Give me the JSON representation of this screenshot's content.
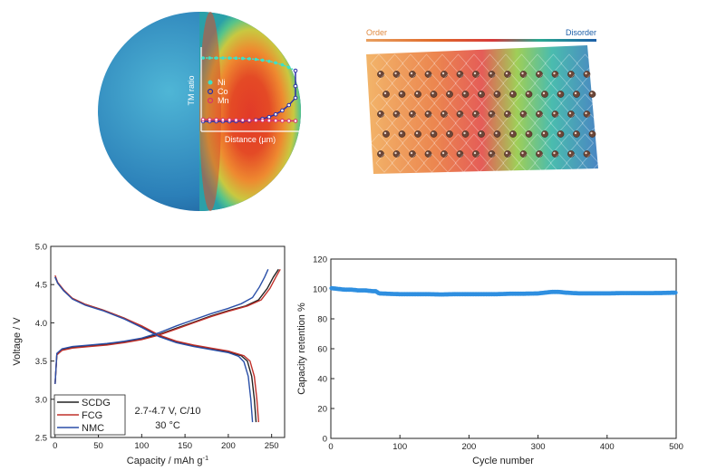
{
  "sphere_inset": {
    "legend": [
      "Ni",
      "Co",
      "Mn"
    ],
    "ylabel": "TM ratio",
    "xlabel": "Distance (µm)",
    "colors": {
      "Ni": "#3de0c8",
      "Co": "#2a2fa8",
      "Mn": "#d6336c"
    }
  },
  "lattice": {
    "left_label": "Order",
    "right_label": "Disorder",
    "gradient": [
      "#e8a060",
      "#e06a2a",
      "#d63a3a",
      "#2aa890",
      "#1d5fa8"
    ]
  },
  "chart_data": [
    {
      "type": "line",
      "id": "voltage-profile",
      "title": "",
      "xlabel": "Capacity / mAh g",
      "xlabel_sup": "-1",
      "ylabel": "Voltage / V",
      "xlim": [
        -5,
        265
      ],
      "ylim": [
        2.5,
        5.0
      ],
      "xticks": [
        0,
        50,
        100,
        150,
        200,
        250
      ],
      "yticks": [
        2.5,
        3.0,
        3.5,
        4.0,
        4.5,
        5.0
      ],
      "annotation": [
        "2.7-4.7 V, C/10",
        "30 °C"
      ],
      "legend_position": "bottom-left",
      "series": [
        {
          "name": "SCDG",
          "color": "#222222",
          "charge": {
            "x": [
              0,
              2,
              8,
              20,
              40,
              60,
              80,
              100,
              120,
              140,
              160,
              180,
              200,
              220,
              235,
              245,
              252,
              258
            ],
            "y": [
              3.2,
              3.58,
              3.65,
              3.68,
              3.7,
              3.72,
              3.75,
              3.79,
              3.85,
              3.93,
              4.01,
              4.09,
              4.16,
              4.22,
              4.3,
              4.45,
              4.6,
              4.7
            ]
          },
          "discharge": {
            "x": [
              0,
              3,
              10,
              20,
              35,
              55,
              80,
              100,
              120,
              140,
              160,
              180,
              200,
              215,
              222,
              227,
              230,
              232
            ],
            "y": [
              4.6,
              4.52,
              4.42,
              4.32,
              4.24,
              4.17,
              4.06,
              3.95,
              3.83,
              3.75,
              3.7,
              3.66,
              3.62,
              3.57,
              3.5,
              3.3,
              3.0,
              2.7
            ]
          }
        },
        {
          "name": "FCG",
          "color": "#c0302a",
          "charge": {
            "x": [
              0,
              2,
              8,
              20,
              40,
              60,
              80,
              100,
              120,
              140,
              160,
              180,
              200,
              222,
              238,
              248,
              255,
              260
            ],
            "y": [
              3.2,
              3.58,
              3.64,
              3.67,
              3.69,
              3.71,
              3.74,
              3.78,
              3.84,
              3.92,
              4.0,
              4.08,
              4.15,
              4.22,
              4.3,
              4.45,
              4.6,
              4.7
            ]
          },
          "discharge": {
            "x": [
              0,
              3,
              10,
              20,
              35,
              55,
              80,
              100,
              120,
              140,
              160,
              180,
              200,
              218,
              225,
              230,
              233,
              235
            ],
            "y": [
              4.62,
              4.53,
              4.43,
              4.32,
              4.24,
              4.17,
              4.06,
              3.96,
              3.84,
              3.76,
              3.71,
              3.67,
              3.63,
              3.57,
              3.5,
              3.3,
              3.0,
              2.7
            ]
          }
        },
        {
          "name": "NMC",
          "color": "#2a4fa8",
          "charge": {
            "x": [
              0,
              2,
              8,
              20,
              40,
              60,
              80,
              100,
              120,
              140,
              160,
              180,
              200,
              215,
              228,
              236,
              242,
              246
            ],
            "y": [
              3.2,
              3.6,
              3.66,
              3.69,
              3.71,
              3.73,
              3.76,
              3.8,
              3.87,
              3.96,
              4.04,
              4.12,
              4.19,
              4.25,
              4.33,
              4.47,
              4.6,
              4.7
            ]
          },
          "discharge": {
            "x": [
              0,
              3,
              10,
              20,
              35,
              55,
              80,
              100,
              120,
              140,
              160,
              180,
              200,
              212,
              218,
              223,
              226,
              228
            ],
            "y": [
              4.6,
              4.52,
              4.42,
              4.31,
              4.23,
              4.16,
              4.05,
              3.94,
              3.82,
              3.74,
              3.69,
              3.65,
              3.61,
              3.56,
              3.49,
              3.3,
              3.0,
              2.7
            ]
          }
        }
      ]
    },
    {
      "type": "scatter",
      "id": "cycle-retention",
      "title": "",
      "xlabel": "Cycle number",
      "ylabel": "Capacity retention %",
      "xlim": [
        0,
        500
      ],
      "ylim": [
        0,
        120
      ],
      "xticks": [
        0,
        100,
        200,
        300,
        400,
        500
      ],
      "yticks": [
        0,
        20,
        40,
        60,
        80,
        100,
        120
      ],
      "color": "#2f8fe0",
      "series": [
        {
          "name": "",
          "x": [
            1,
            10,
            20,
            30,
            40,
            50,
            60,
            65,
            70,
            80,
            100,
            120,
            140,
            160,
            180,
            200,
            220,
            240,
            260,
            280,
            300,
            310,
            320,
            330,
            340,
            360,
            380,
            400,
            420,
            440,
            460,
            480,
            500
          ],
          "y": [
            100.5,
            100,
            99.5,
            99.5,
            99,
            99,
            98.5,
            98.5,
            97,
            96.8,
            96.5,
            96.5,
            96.5,
            96.3,
            96.5,
            96.5,
            96.5,
            96.5,
            96.8,
            96.8,
            97,
            97.5,
            98,
            98,
            97.5,
            97,
            97,
            97,
            97.2,
            97.2,
            97.2,
            97.3,
            97.5
          ]
        }
      ]
    }
  ]
}
